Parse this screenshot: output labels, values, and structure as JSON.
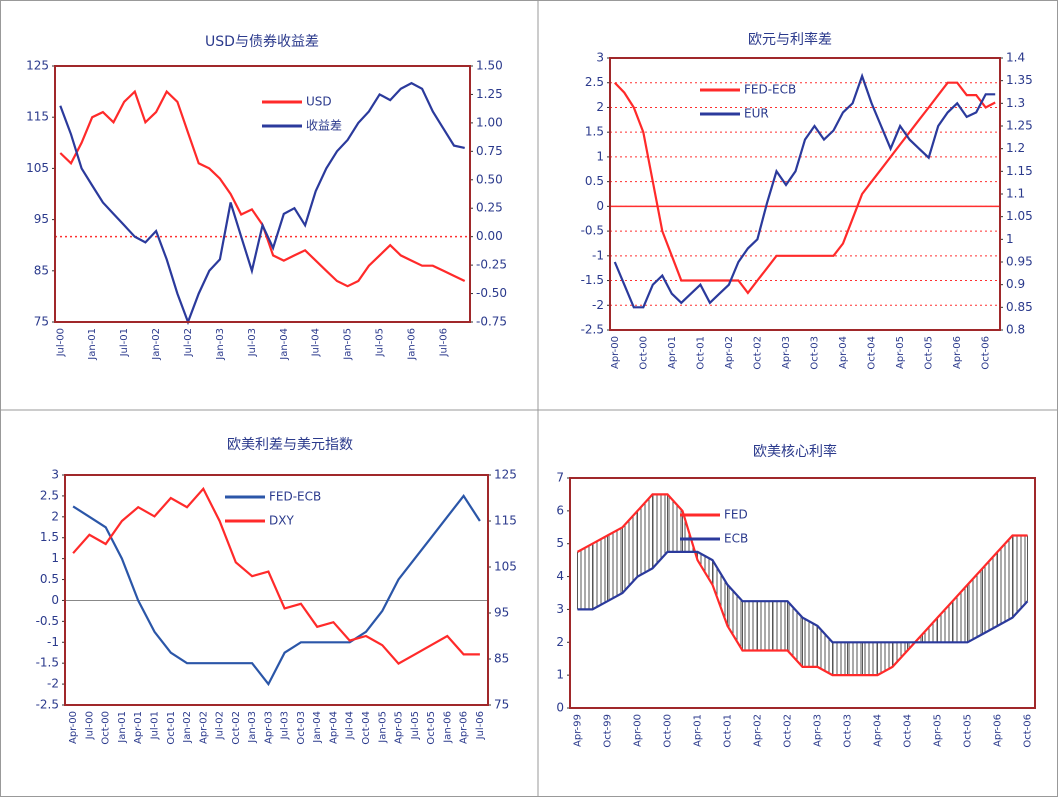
{
  "chart_data": [
    {
      "type": "line",
      "title": "USD与债券收益差",
      "categories": [
        "Jul-00",
        null,
        null,
        "Jan-01",
        null,
        null,
        "Jul-01",
        null,
        null,
        "Jan-02",
        null,
        null,
        "Jul-02",
        null,
        null,
        "Jan-03",
        null,
        null,
        "Jul-03",
        null,
        null,
        "Jan-04",
        null,
        null,
        "Jul-04",
        null,
        null,
        "Jan-05",
        null,
        null,
        "Jul-05",
        null,
        null,
        "Jan-06",
        null,
        null,
        "Jul-06",
        null,
        null
      ],
      "series": [
        {
          "name": "USD",
          "color": "#ff2a2a",
          "values": [
            108,
            106,
            110,
            115,
            116,
            114,
            118,
            120,
            114,
            116,
            120,
            118,
            112,
            106,
            105,
            103,
            100,
            96,
            97,
            94,
            88,
            87,
            88,
            89,
            87,
            85,
            83,
            82,
            83,
            86,
            88,
            90,
            88,
            87,
            86,
            86,
            85,
            84,
            83
          ]
        },
        {
          "name": "收益差",
          "color": "#2b3a9c",
          "axis": "y2",
          "values": [
            1.15,
            0.9,
            0.6,
            0.45,
            0.3,
            0.2,
            0.1,
            0.0,
            -0.05,
            0.05,
            -0.2,
            -0.5,
            -0.75,
            -0.5,
            -0.3,
            -0.2,
            0.3,
            0.0,
            -0.3,
            0.1,
            -0.1,
            0.2,
            0.25,
            0.1,
            0.4,
            0.6,
            0.75,
            0.85,
            1.0,
            1.1,
            1.25,
            1.2,
            1.3,
            1.35,
            1.3,
            1.1,
            0.95,
            0.8,
            0.78
          ]
        }
      ],
      "ylim": [
        75,
        125
      ],
      "yticks": [
        75,
        85,
        95,
        105,
        115,
        125
      ],
      "y2lim": [
        -0.75,
        1.5
      ],
      "y2ticks": [
        {
          "value": -0.75,
          "label": "-0.75"
        },
        {
          "value": -0.5,
          "label": "-0.50"
        },
        {
          "value": -0.25,
          "label": "-0.25"
        },
        {
          "value": 0,
          "label": "0.00"
        },
        {
          "value": 0.25,
          "label": "0.25"
        },
        {
          "value": 0.5,
          "label": "0.50"
        },
        {
          "value": 0.75,
          "label": "0.75"
        },
        {
          "value": 1,
          "label": "1.00"
        },
        {
          "value": 1.25,
          "label": "1.25"
        },
        {
          "value": 1.5,
          "label": "1.50"
        }
      ],
      "reference_line": {
        "value": 0,
        "axis": "y2",
        "style": "dotted"
      },
      "grid": false
    },
    {
      "type": "line",
      "title": "欧元与利率差",
      "categories": [
        "Apr-00",
        null,
        null,
        "Oct-00",
        null,
        null,
        "Apr-01",
        null,
        null,
        "Oct-01",
        null,
        null,
        "Apr-02",
        null,
        null,
        "Oct-02",
        null,
        null,
        "Apr-03",
        null,
        null,
        "Oct-03",
        null,
        null,
        "Apr-04",
        null,
        null,
        "Oct-04",
        null,
        null,
        "Apr-05",
        null,
        null,
        "Oct-05",
        null,
        null,
        "Apr-06",
        null,
        null,
        "Oct-06",
        null
      ],
      "series": [
        {
          "name": "FED-ECB",
          "color": "#ff2a2a",
          "values": [
            2.5,
            2.3,
            2.0,
            1.5,
            0.5,
            -0.5,
            -1.0,
            -1.5,
            -1.5,
            -1.5,
            -1.5,
            -1.5,
            -1.5,
            -1.5,
            -1.75,
            -1.5,
            -1.25,
            -1.0,
            -1.0,
            -1.0,
            -1.0,
            -1.0,
            -1.0,
            -1.0,
            -0.75,
            -0.25,
            0.25,
            0.5,
            0.75,
            1.0,
            1.25,
            1.5,
            1.75,
            2.0,
            2.25,
            2.5,
            2.5,
            2.25,
            2.25,
            2.0,
            2.1
          ]
        },
        {
          "name": "EUR",
          "color": "#2b3a9c",
          "axis": "y2",
          "values": [
            0.95,
            0.9,
            0.85,
            0.85,
            0.9,
            0.92,
            0.88,
            0.86,
            0.88,
            0.9,
            0.86,
            0.88,
            0.9,
            0.95,
            0.98,
            1.0,
            1.08,
            1.15,
            1.12,
            1.15,
            1.22,
            1.25,
            1.22,
            1.24,
            1.28,
            1.3,
            1.36,
            1.3,
            1.25,
            1.2,
            1.25,
            1.22,
            1.2,
            1.18,
            1.25,
            1.28,
            1.3,
            1.27,
            1.28,
            1.32,
            1.32
          ]
        }
      ],
      "ylim": [
        -2.5,
        3
      ],
      "yticks": [
        -2.5,
        -2,
        -1.5,
        -1,
        -0.5,
        0,
        0.5,
        1,
        1.5,
        2,
        2.5,
        3
      ],
      "y2lim": [
        0.8,
        1.4
      ],
      "y2ticks": [
        0.8,
        0.85,
        0.9,
        0.95,
        1,
        1.05,
        1.1,
        1.15,
        1.2,
        1.25,
        1.3,
        1.35,
        1.4
      ],
      "reference_line": {
        "value": 0,
        "style": "solid"
      },
      "grid": true
    },
    {
      "type": "line",
      "title": "欧美利差与美元指数",
      "categories": [
        "Apr-00",
        "Jul-00",
        "Oct-00",
        "Jan-01",
        "Apr-01",
        "Jul-01",
        "Oct-01",
        "Jan-02",
        "Apr-02",
        "Jul-02",
        "Oct-02",
        "Jan-03",
        "Apr-03",
        "Jul-03",
        "Oct-03",
        "Jan-04",
        "Apr-04",
        "Jul-04",
        "Oct-04",
        "Jan-05",
        "Apr-05",
        "Jul-05",
        "Oct-05",
        "Jan-06",
        "Apr-06",
        "Jul-06"
      ],
      "series": [
        {
          "name": "FED-ECB",
          "color": "#2b56a8",
          "values": [
            2.25,
            2.0,
            1.75,
            1.0,
            0.0,
            -0.75,
            -1.25,
            -1.5,
            -1.5,
            -1.5,
            -1.5,
            -1.5,
            -2.0,
            -1.25,
            -1.0,
            -1.0,
            -1.0,
            -1.0,
            -0.75,
            -0.25,
            0.5,
            1.0,
            1.5,
            2.0,
            2.5,
            1.9
          ]
        },
        {
          "name": "DXY",
          "color": "#ff2a2a",
          "axis": "y2",
          "values": [
            108,
            112,
            110,
            115,
            118,
            116,
            120,
            118,
            122,
            115,
            106,
            103,
            104,
            96,
            97,
            92,
            93,
            89,
            90,
            88,
            84,
            86,
            88,
            90,
            86,
            86
          ]
        }
      ],
      "ylim": [
        -2.5,
        3
      ],
      "yticks": [
        -2.5,
        -2,
        -1.5,
        -1,
        -0.5,
        0,
        0.5,
        1,
        1.5,
        2,
        2.5,
        3
      ],
      "y2lim": [
        75,
        125
      ],
      "y2ticks": [
        75,
        85,
        95,
        105,
        115,
        125
      ],
      "reference_line": {
        "value": 0,
        "style": "grey"
      },
      "grid": false
    },
    {
      "type": "line",
      "title": "欧美核心利率",
      "categories": [
        "Apr-99",
        null,
        "Oct-99",
        null,
        "Apr-00",
        null,
        "Oct-00",
        null,
        "Apr-01",
        null,
        "Oct-01",
        null,
        "Apr-02",
        null,
        "Oct-02",
        null,
        "Apr-03",
        null,
        "Oct-03",
        null,
        "Apr-04",
        null,
        "Oct-04",
        null,
        "Apr-05",
        null,
        "Oct-05",
        null,
        "Apr-06",
        null,
        "Oct-06"
      ],
      "series": [
        {
          "name": "FED",
          "color": "#ff2a2a",
          "values": [
            4.75,
            5,
            5.25,
            5.5,
            6,
            6.5,
            6.5,
            6,
            4.5,
            3.75,
            2.5,
            1.75,
            1.75,
            1.75,
            1.75,
            1.25,
            1.25,
            1,
            1,
            1,
            1,
            1.25,
            1.75,
            2.25,
            2.75,
            3.25,
            3.75,
            4.25,
            4.75,
            5.25,
            5.25
          ]
        },
        {
          "name": "ECB",
          "color": "#2b3a9c",
          "values": [
            3,
            3,
            3.25,
            3.5,
            4,
            4.25,
            4.75,
            4.75,
            4.75,
            4.5,
            3.75,
            3.25,
            3.25,
            3.25,
            3.25,
            2.75,
            2.5,
            2,
            2,
            2,
            2,
            2,
            2,
            2,
            2,
            2,
            2,
            2.25,
            2.5,
            2.75,
            3.25
          ]
        }
      ],
      "ylim": [
        0,
        7
      ],
      "yticks": [
        0,
        1,
        2,
        3,
        4,
        5,
        6,
        7
      ],
      "fill_between": true,
      "grid": false
    }
  ]
}
